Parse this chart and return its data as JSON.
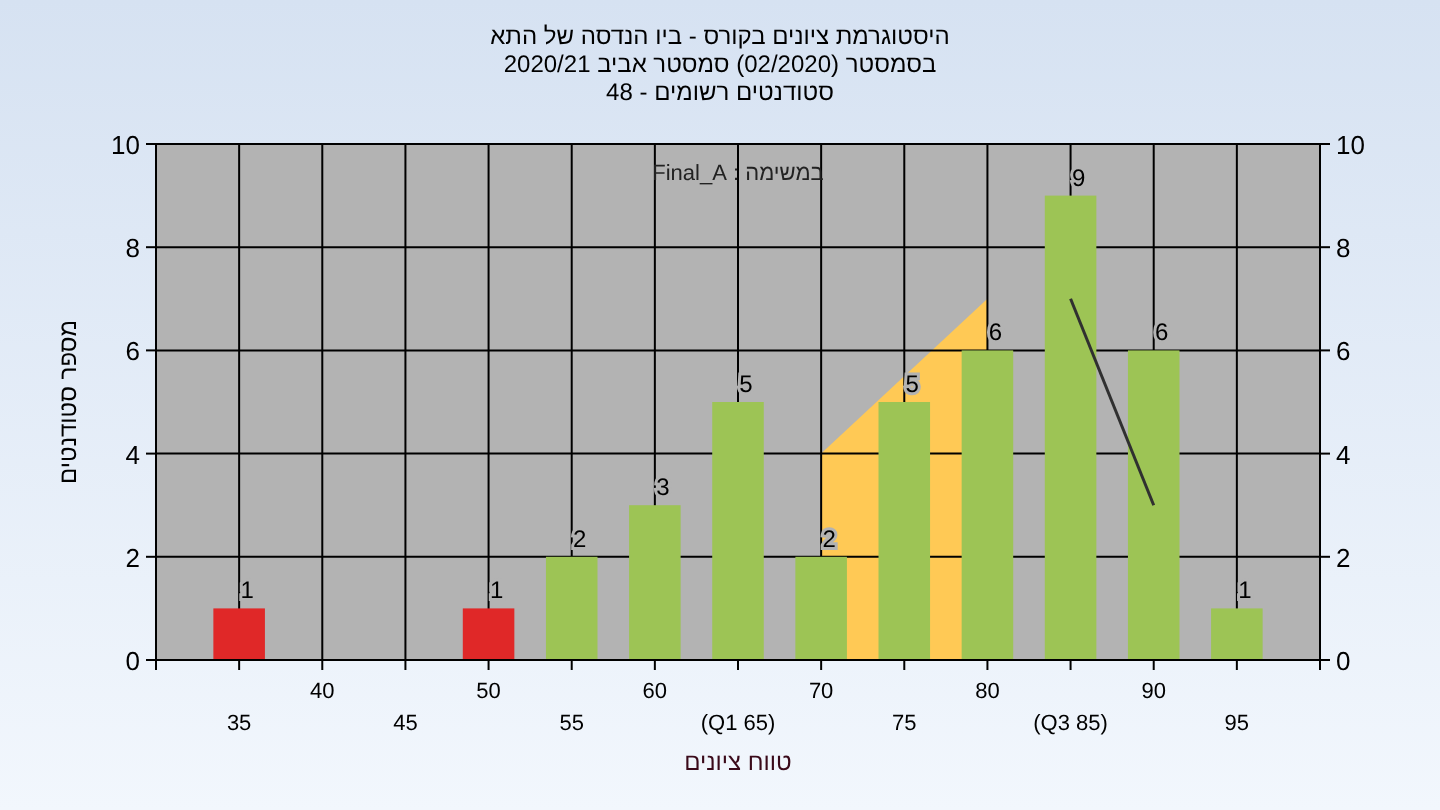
{
  "chart_data": {
    "type": "bar",
    "title": "היסטוגרמת ציונים בקורס - ביו הנדסה של התא",
    "subtitle": "בסמסטר  (02/2020)  סמסטר אביב 2020/21\nסטודנטים רשומים - 48",
    "xlabel": "טווח ציונים",
    "ylabel": "מספר סטודנטים",
    "annotations": [
      "במשימה : Final_A"
    ],
    "categories": [
      "35",
      "40",
      "45",
      "50",
      "55",
      "60",
      "(Q1 65)",
      "70",
      "75",
      "80",
      "(Q3 85)",
      "90",
      "95"
    ],
    "series": [
      {
        "type": "area",
        "color": "#ffc955",
        "values": [
          null,
          null,
          null,
          null,
          null,
          null,
          null,
          4,
          null,
          7,
          null,
          null,
          null
        ]
      },
      {
        "colors": [
          "#e02828",
          null,
          null,
          "#e02828",
          "#9dc455",
          "#9dc455",
          "#9dc455",
          "#9dc455",
          "#9dc455",
          "#9dc455",
          "#9dc455",
          "#9dc455",
          "#9dc455"
        ],
        "values": [
          1,
          null,
          null,
          1,
          2,
          3,
          5,
          2,
          5,
          6,
          9,
          6,
          1
        ],
        "value_labels": [
          "1",
          null,
          null,
          "1",
          "2",
          "3",
          "5",
          "2",
          "5",
          "6",
          "9",
          "6",
          "1"
        ]
      },
      {
        "type": "line",
        "color": "#303030",
        "values": [
          null,
          null,
          null,
          null,
          null,
          null,
          null,
          null,
          null,
          null,
          7,
          3,
          null
        ]
      }
    ],
    "ylim": [
      0,
      10
    ],
    "yticks": [
      0,
      2,
      4,
      6,
      8,
      10
    ],
    "y2lim": [
      0,
      10
    ],
    "y2ticks": [
      0,
      2,
      4,
      6,
      8,
      10
    ],
    "grid": true
  }
}
